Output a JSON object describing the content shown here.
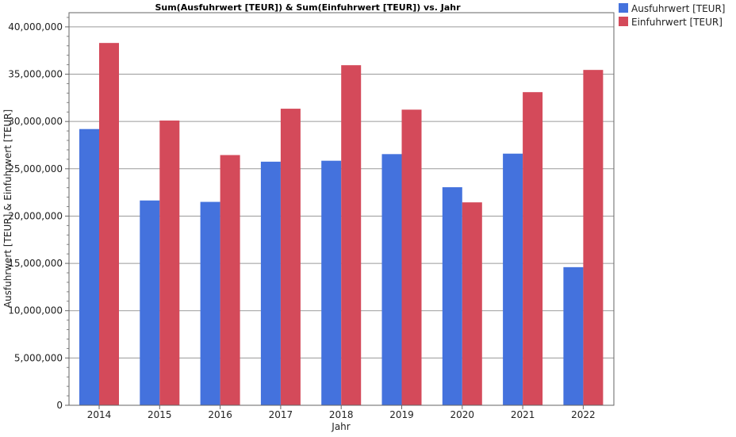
{
  "chart_data": {
    "type": "bar",
    "title": "Sum(Ausfuhrwert [TEUR]) & Sum(Einfuhrwert [TEUR]) vs. Jahr",
    "xlabel": "Jahr",
    "ylabel": "Ausfuhrwert [TEUR] & Einfuhrwert [TEUR]",
    "categories": [
      "2014",
      "2015",
      "2016",
      "2017",
      "2018",
      "2019",
      "2020",
      "2021",
      "2022"
    ],
    "ylim": [
      0,
      41500000
    ],
    "yticks": [
      0,
      5000000,
      10000000,
      15000000,
      20000000,
      25000000,
      30000000,
      35000000,
      40000000
    ],
    "ytick_labels": [
      "0",
      "5,000,000",
      "10,000,000",
      "15,000,000",
      "20,000,000",
      "25,000,000",
      "30,000,000",
      "35,000,000",
      "40,000,000"
    ],
    "grid": "horizontal",
    "legend_position": "top-right",
    "series": [
      {
        "name": "Ausfuhrwert [TEUR]",
        "color": "#4472DD",
        "values": [
          29200000,
          21650000,
          21500000,
          25750000,
          25850000,
          26550000,
          23050000,
          26600000,
          14600000
        ]
      },
      {
        "name": "Einfuhrwert [TEUR]",
        "color": "#D44A5A",
        "values": [
          38300000,
          30100000,
          26450000,
          31350000,
          35950000,
          31250000,
          21450000,
          33100000,
          35450000
        ]
      }
    ]
  }
}
